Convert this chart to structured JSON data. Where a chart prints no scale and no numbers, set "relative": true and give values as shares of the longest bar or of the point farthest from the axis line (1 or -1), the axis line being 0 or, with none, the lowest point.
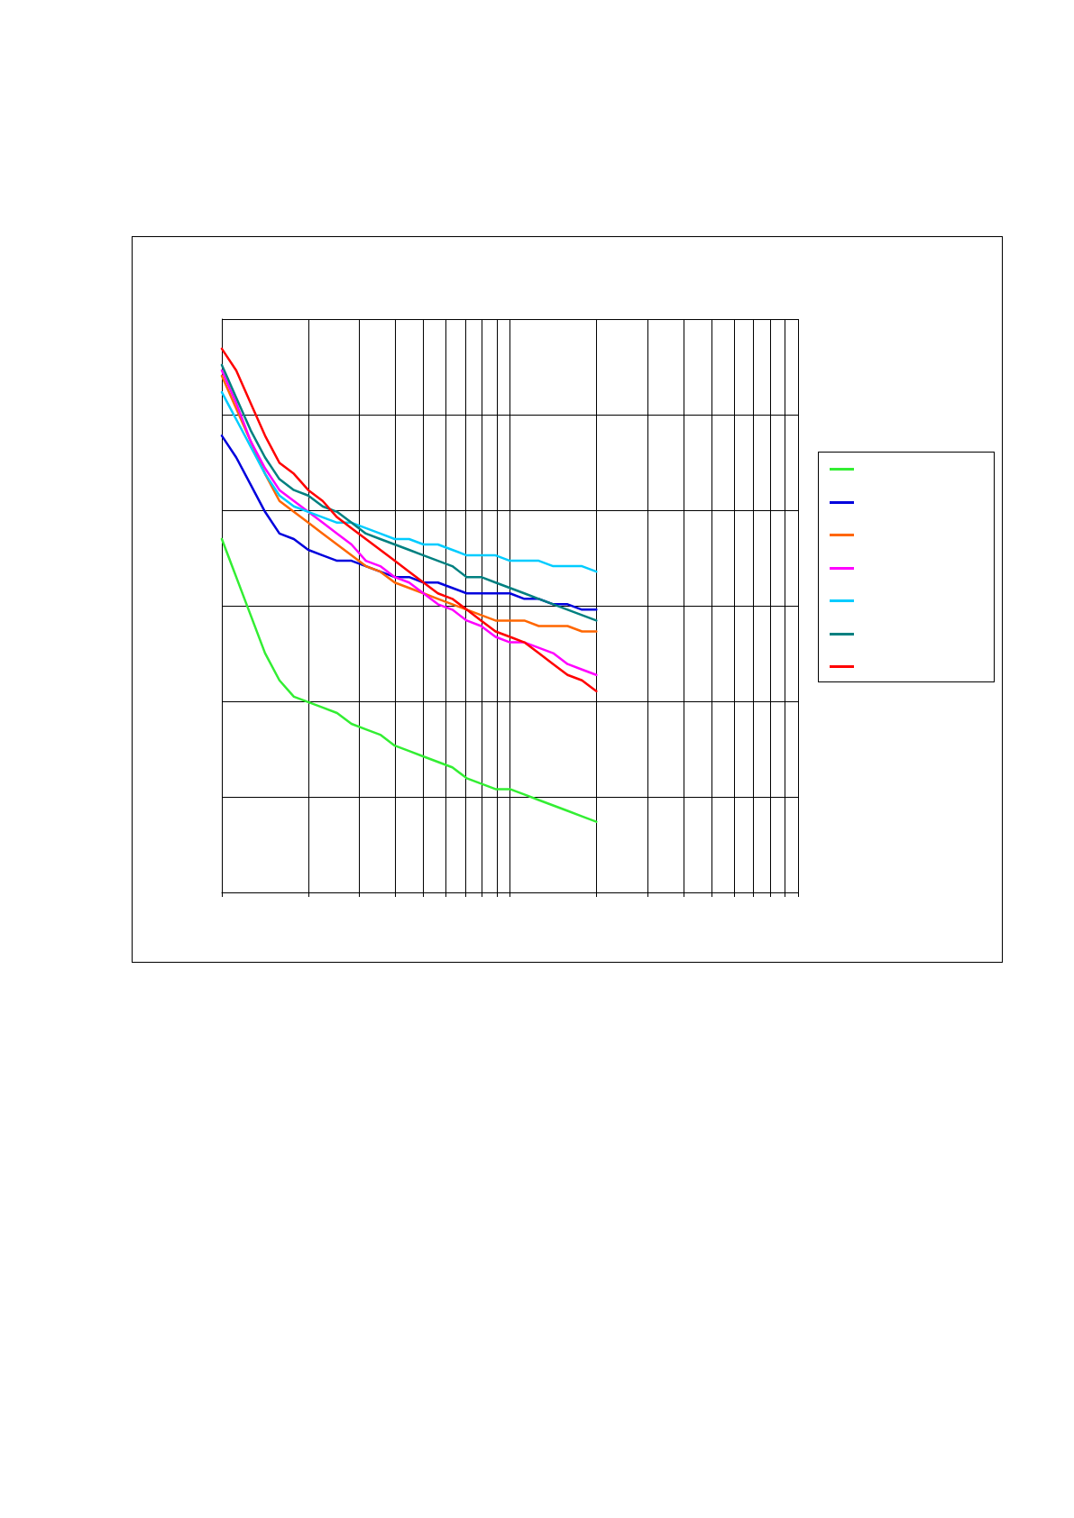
{
  "chart_data": {
    "type": "line",
    "relative": true,
    "log": "x",
    "grid": true,
    "marker": "none",
    "line_style": "solid",
    "categories": [
      null,
      null,
      null,
      null,
      null,
      null,
      null,
      null,
      null,
      null,
      null,
      null,
      null,
      null,
      null,
      null,
      null,
      null,
      null,
      null,
      null,
      null,
      null,
      null,
      null,
      null,
      null,
      null,
      null,
      null,
      null,
      null,
      null,
      null,
      null,
      null,
      null,
      null,
      null,
      null,
      null
    ],
    "series": [
      {
        "color": "#33ee33",
        "values": [
          0.65,
          0.58,
          0.51,
          0.44,
          0.39,
          0.36,
          0.35,
          0.34,
          0.33,
          0.31,
          0.3,
          0.29,
          0.27,
          0.26,
          0.25,
          0.24,
          0.23,
          0.21,
          0.2,
          0.19,
          0.19,
          0.18,
          0.17,
          0.16,
          0.15,
          0.14,
          0.13,
          null,
          null,
          null,
          null,
          null,
          null,
          null,
          null,
          null,
          null,
          null,
          null,
          null,
          null
        ]
      },
      {
        "color": "#0000dd",
        "values": [
          0.84,
          0.8,
          0.75,
          0.7,
          0.66,
          0.65,
          0.63,
          0.62,
          0.61,
          0.61,
          0.6,
          0.59,
          0.58,
          0.58,
          0.57,
          0.57,
          0.56,
          0.55,
          0.55,
          0.55,
          0.55,
          0.54,
          0.54,
          0.53,
          0.53,
          0.52,
          0.52,
          null,
          null,
          null,
          null,
          null,
          null,
          null,
          null,
          null,
          null,
          null,
          null,
          null,
          null
        ]
      },
      {
        "color": "#ff6600",
        "values": [
          0.95,
          0.89,
          0.83,
          0.77,
          0.72,
          0.7,
          0.68,
          0.66,
          0.64,
          0.62,
          0.6,
          0.59,
          0.57,
          0.56,
          0.55,
          0.54,
          0.53,
          0.52,
          0.51,
          0.5,
          0.5,
          0.5,
          0.49,
          0.49,
          0.49,
          0.48,
          0.48,
          null,
          null,
          null,
          null,
          null,
          null,
          null,
          null,
          null,
          null,
          null,
          null,
          null,
          null
        ]
      },
      {
        "color": "#ff00ff",
        "values": [
          0.96,
          0.9,
          0.83,
          0.78,
          0.74,
          0.72,
          0.7,
          0.68,
          0.66,
          0.64,
          0.61,
          0.6,
          0.58,
          0.57,
          0.55,
          0.53,
          0.52,
          0.5,
          0.49,
          0.47,
          0.46,
          0.46,
          0.45,
          0.44,
          0.42,
          0.41,
          0.4,
          null,
          null,
          null,
          null,
          null,
          null,
          null,
          null,
          null,
          null,
          null,
          null,
          null,
          null
        ]
      },
      {
        "color": "#00ccff",
        "values": [
          0.92,
          0.87,
          0.82,
          0.77,
          0.73,
          0.71,
          0.7,
          0.69,
          0.68,
          0.68,
          0.67,
          0.66,
          0.65,
          0.65,
          0.64,
          0.64,
          0.63,
          0.62,
          0.62,
          0.62,
          0.61,
          0.61,
          0.61,
          0.6,
          0.6,
          0.6,
          0.59,
          null,
          null,
          null,
          null,
          null,
          null,
          null,
          null,
          null,
          null,
          null,
          null,
          null,
          null
        ]
      },
      {
        "color": "#008080",
        "values": [
          0.97,
          0.91,
          0.85,
          0.8,
          0.76,
          0.74,
          0.73,
          0.71,
          0.7,
          0.68,
          0.66,
          0.65,
          0.64,
          0.63,
          0.62,
          0.61,
          0.6,
          0.58,
          0.58,
          0.57,
          0.56,
          0.55,
          0.54,
          0.53,
          0.52,
          0.51,
          0.5,
          null,
          null,
          null,
          null,
          null,
          null,
          null,
          null,
          null,
          null,
          null,
          null,
          null,
          null
        ]
      },
      {
        "color": "#ff0000",
        "values": [
          1,
          0.96,
          0.9,
          0.84,
          0.79,
          0.77,
          0.74,
          0.72,
          0.69,
          0.67,
          0.65,
          0.63,
          0.61,
          0.59,
          0.57,
          0.55,
          0.54,
          0.52,
          0.5,
          0.48,
          0.47,
          0.46,
          0.44,
          0.42,
          0.4,
          0.39,
          0.37,
          null,
          null,
          null,
          null,
          null,
          null,
          null,
          null,
          null,
          null,
          null,
          null,
          null,
          null
        ]
      }
    ]
  }
}
